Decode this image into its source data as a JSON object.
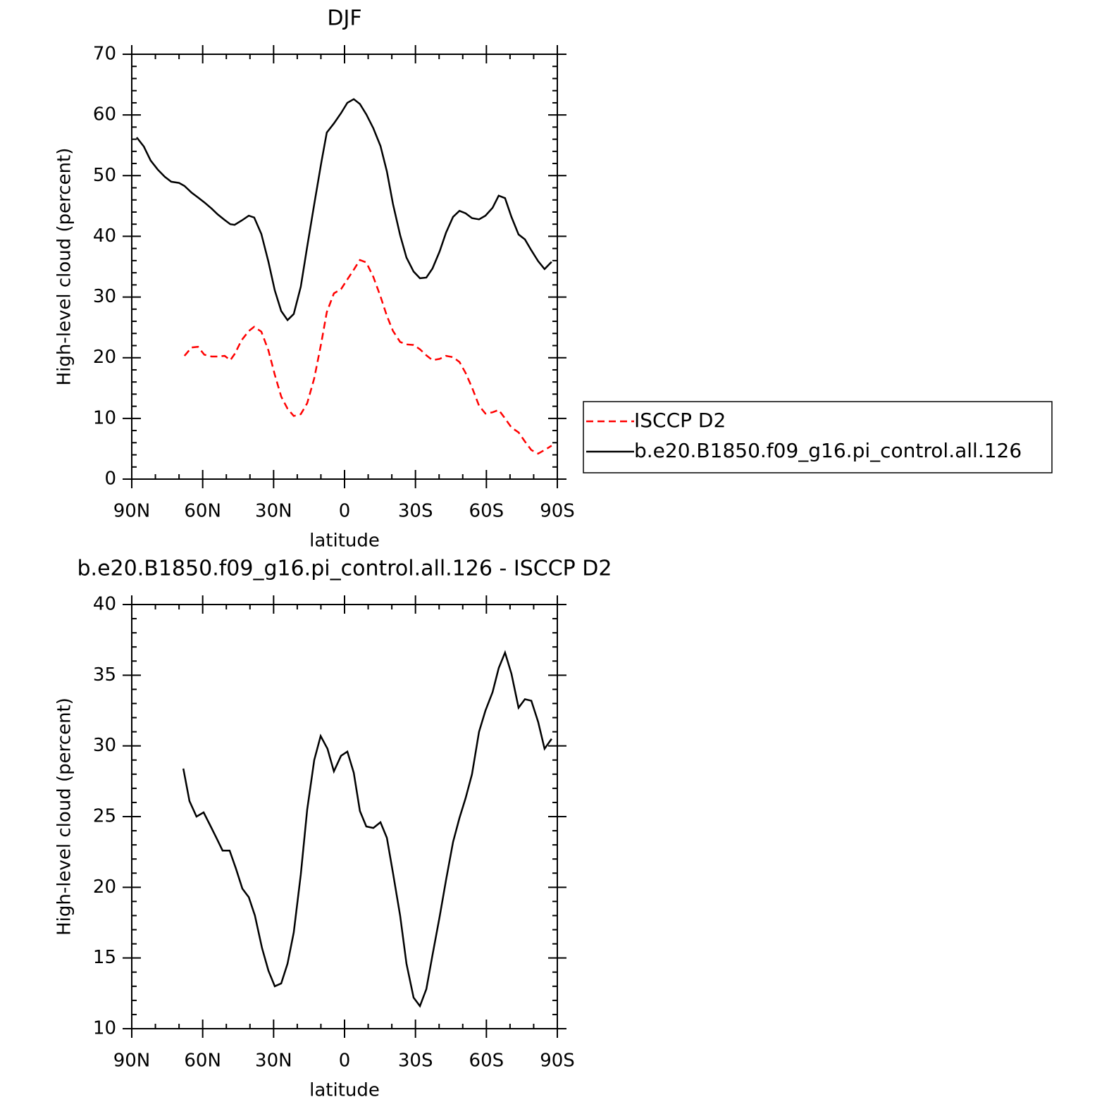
{
  "chart_data": [
    {
      "type": "line",
      "title": "DJF",
      "xlabel": "latitude",
      "ylabel": "High-level cloud (percent)",
      "xlim": [
        90,
        -90
      ],
      "ylim": [
        0,
        70
      ],
      "xticks": [
        {
          "value": 90,
          "label": "90N"
        },
        {
          "value": 60,
          "label": "60N"
        },
        {
          "value": 30,
          "label": "30N"
        },
        0,
        {
          "value": -30,
          "label": "30S"
        },
        {
          "value": -60,
          "label": "60S"
        },
        {
          "value": -90,
          "label": "90S"
        }
      ],
      "yticks": [
        0,
        10,
        20,
        30,
        40,
        50,
        60,
        70
      ],
      "legend": "outside-right",
      "x": [
        87.9,
        84.9,
        82.0,
        79.0,
        76.0,
        73.3,
        70.0,
        67.7,
        64.7,
        62.0,
        59.3,
        56.3,
        53.6,
        50.7,
        48.3,
        46.5,
        43.5,
        40.5,
        38.2,
        35.2,
        32.2,
        29.5,
        26.8,
        24.1,
        21.5,
        18.5,
        15.8,
        12.8,
        9.8,
        7.5,
        4.5,
        1.5,
        -1.2,
        -3.9,
        -6.5,
        -9.2,
        -12.2,
        -15.2,
        -17.9,
        -20.5,
        -23.5,
        -26.2,
        -29.2,
        -31.9,
        -34.6,
        -37.2,
        -40.2,
        -42.9,
        -45.9,
        -48.6,
        -51.2,
        -53.9,
        -56.9,
        -59.6,
        -62.6,
        -65.2,
        -67.9,
        -70.6,
        -73.6,
        -76.3,
        -79.0,
        -81.9,
        -84.6,
        -87.6
      ],
      "series": [
        {
          "name": "ISCCP D2",
          "color": "#ff0000",
          "style": "dashed",
          "values": [
            null,
            null,
            null,
            null,
            null,
            null,
            null,
            20.3,
            21.7,
            21.8,
            20.5,
            20.2,
            20.2,
            20.3,
            19.6,
            20.6,
            22.9,
            24.4,
            25.1,
            24.3,
            21.2,
            17.2,
            13.6,
            11.6,
            10.4,
            10.7,
            12.5,
            16.6,
            22.5,
            27.5,
            30.6,
            31.3,
            32.9,
            34.5,
            36.1,
            35.7,
            33.3,
            30.1,
            26.9,
            24.4,
            22.6,
            22.2,
            22.1,
            21.4,
            20.4,
            19.6,
            19.8,
            20.3,
            20.1,
            19.3,
            17.5,
            15.1,
            12.1,
            10.8,
            11.0,
            11.4,
            10.0,
            8.5,
            7.7,
            6.2,
            4.8,
            4.2,
            4.8,
            5.5
          ]
        },
        {
          "name": "b.e20.B1850.f09_g16.pi_control.all.126",
          "color": "#000000",
          "style": "solid",
          "values": [
            56.3,
            54.8,
            52.5,
            51.0,
            49.8,
            49.0,
            48.8,
            48.3,
            47.2,
            46.4,
            45.6,
            44.6,
            43.6,
            42.7,
            42.0,
            41.9,
            42.6,
            43.4,
            43.1,
            40.4,
            35.8,
            31.1,
            27.7,
            26.2,
            27.2,
            31.7,
            38.3,
            45.3,
            52.2,
            57.1,
            58.6,
            60.3,
            62.0,
            62.6,
            61.8,
            60.1,
            57.8,
            54.9,
            50.7,
            45.3,
            40.2,
            36.5,
            34.2,
            33.1,
            33.2,
            34.7,
            37.5,
            40.6,
            43.2,
            44.2,
            43.8,
            43.0,
            42.8,
            43.4,
            44.7,
            46.7,
            46.3,
            43.2,
            40.3,
            39.5,
            37.7,
            35.9,
            34.6,
            35.8
          ]
        }
      ]
    },
    {
      "type": "line",
      "title": "b.e20.B1850.f09_g16.pi_control.all.126 - ISCCP D2",
      "xlabel": "latitude",
      "ylabel": "High-level cloud (percent)",
      "xlim": [
        90,
        -90
      ],
      "ylim": [
        10,
        40
      ],
      "xticks": [
        {
          "value": 90,
          "label": "90N"
        },
        {
          "value": 60,
          "label": "60N"
        },
        {
          "value": 30,
          "label": "30N"
        },
        0,
        {
          "value": -30,
          "label": "30S"
        },
        {
          "value": -60,
          "label": "60S"
        },
        {
          "value": -90,
          "label": "90S"
        }
      ],
      "yticks": [
        10,
        15,
        20,
        25,
        30,
        35,
        40
      ],
      "x": [
        68.2,
        65.6,
        62.6,
        59.6,
        56.9,
        54.2,
        51.6,
        48.6,
        45.9,
        43.2,
        40.5,
        37.9,
        34.9,
        32.2,
        29.5,
        26.8,
        24.1,
        21.5,
        18.5,
        15.8,
        12.8,
        10.1,
        7.2,
        4.5,
        1.5,
        -1.2,
        -3.9,
        -6.5,
        -9.2,
        -12.2,
        -15.2,
        -17.9,
        -20.5,
        -23.5,
        -26.2,
        -29.2,
        -31.9,
        -34.6,
        -37.2,
        -40.2,
        -42.9,
        -45.9,
        -48.6,
        -51.2,
        -53.9,
        -56.9,
        -59.6,
        -62.6,
        -65.2,
        -67.9,
        -70.6,
        -73.6,
        -76.3,
        -79.0,
        -81.9,
        -84.6,
        -87.6
      ],
      "color": "#000000",
      "values": [
        28.4,
        26.1,
        25.0,
        25.3,
        24.4,
        23.5,
        22.6,
        22.6,
        21.3,
        19.9,
        19.3,
        18.0,
        15.7,
        14.1,
        13.0,
        13.2,
        14.6,
        16.8,
        20.9,
        25.5,
        29.0,
        30.7,
        29.8,
        28.2,
        29.3,
        29.6,
        28.1,
        25.4,
        24.3,
        24.2,
        24.6,
        23.5,
        21.0,
        18.0,
        14.6,
        12.2,
        11.6,
        12.8,
        15.2,
        17.9,
        20.5,
        23.2,
        24.9,
        26.3,
        28.0,
        31.0,
        32.5,
        33.8,
        35.5,
        36.6,
        35.1,
        32.7,
        33.3,
        33.2,
        31.7,
        29.8,
        30.5
      ]
    }
  ]
}
